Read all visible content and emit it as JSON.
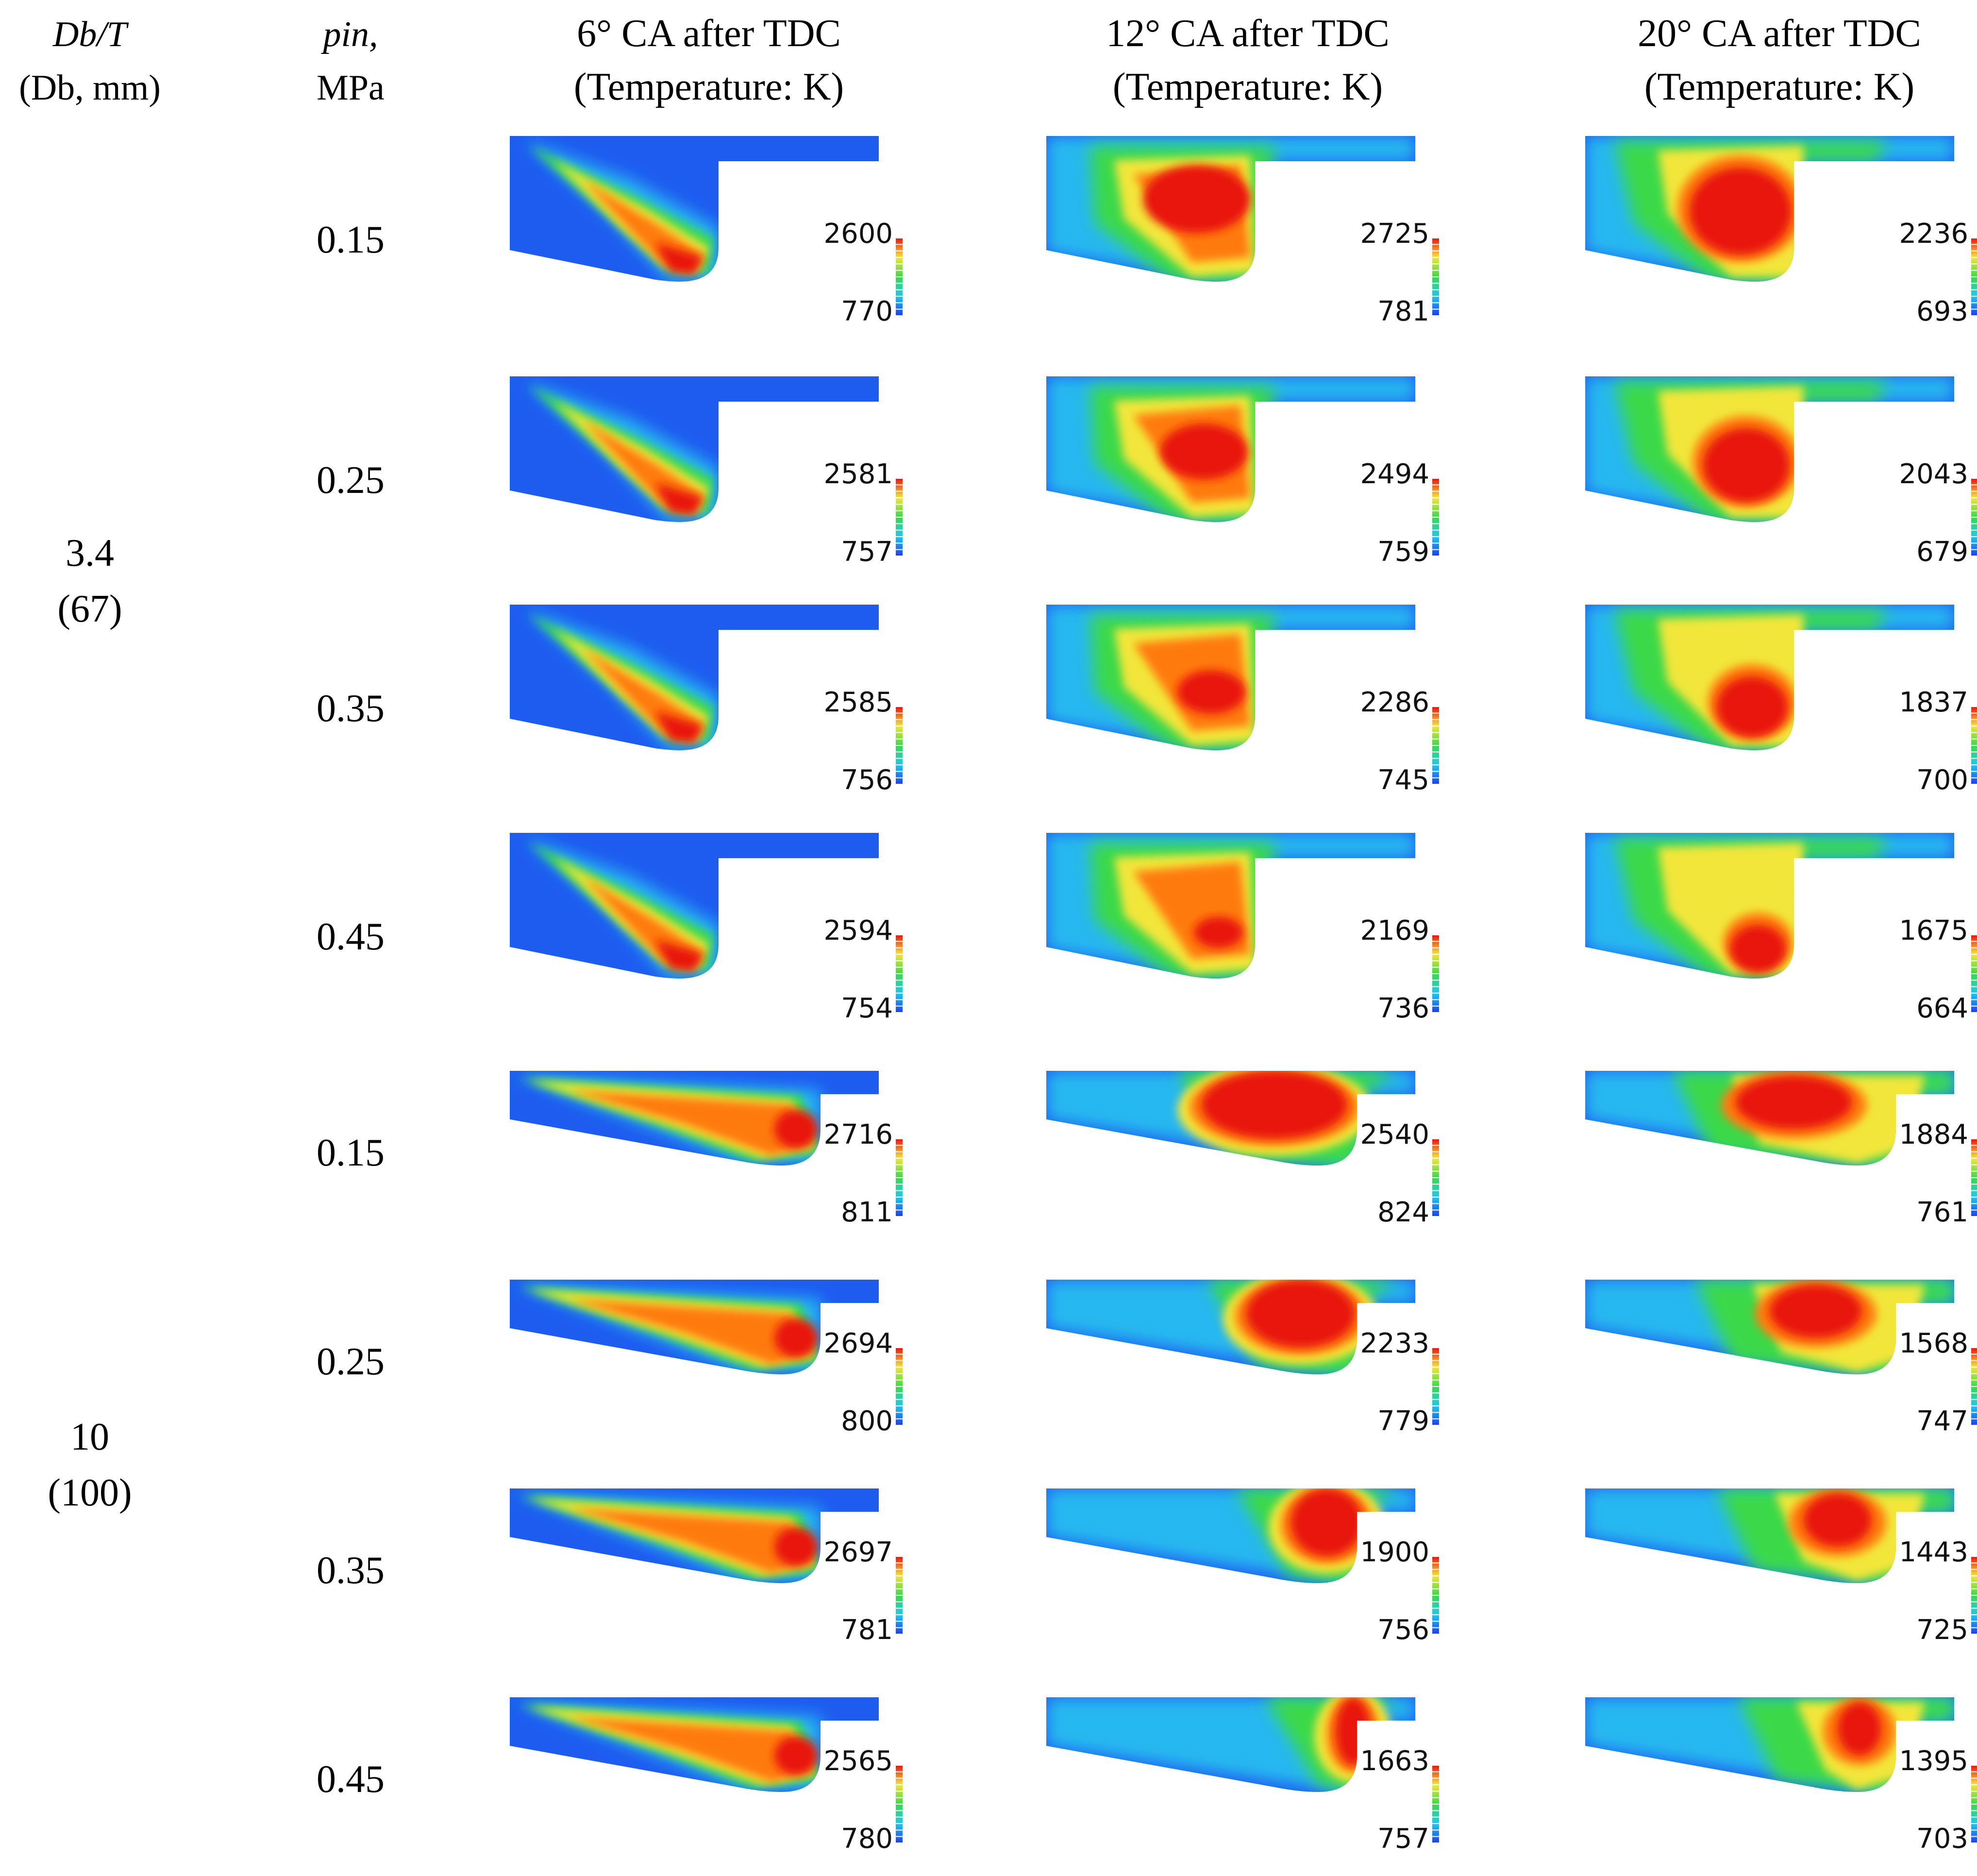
{
  "header": {
    "col_db": {
      "line1": "Db/T",
      "line2": "(Db, mm)"
    },
    "col_p": {
      "line1": "pin,",
      "line2": "MPa"
    },
    "col_6": {
      "line1": "6° CA after TDC",
      "line2": "(Temperature: K)"
    },
    "col_12": {
      "line1": "12° CA after TDC",
      "line2": "(Temperature: K)"
    },
    "col_20": {
      "line1": "20° CA after TDC",
      "line2": "(Temperature: K)"
    }
  },
  "groups": [
    {
      "ratio": "3.4",
      "diameter": "(67)"
    },
    {
      "ratio": "10",
      "diameter": "(100)"
    }
  ],
  "rows": [
    {
      "group": 0,
      "pressure": "0.15",
      "maps": [
        {
          "max": "2600",
          "min": "770"
        },
        {
          "max": "2725",
          "min": "781"
        },
        {
          "max": "2236",
          "min": "693"
        }
      ]
    },
    {
      "group": 0,
      "pressure": "0.25",
      "maps": [
        {
          "max": "2581",
          "min": "757"
        },
        {
          "max": "2494",
          "min": "759"
        },
        {
          "max": "2043",
          "min": "679"
        }
      ]
    },
    {
      "group": 0,
      "pressure": "0.35",
      "maps": [
        {
          "max": "2585",
          "min": "756"
        },
        {
          "max": "2286",
          "min": "745"
        },
        {
          "max": "1837",
          "min": "700"
        }
      ]
    },
    {
      "group": 0,
      "pressure": "0.45",
      "maps": [
        {
          "max": "2594",
          "min": "754"
        },
        {
          "max": "2169",
          "min": "736"
        },
        {
          "max": "1675",
          "min": "664"
        }
      ]
    },
    {
      "group": 1,
      "pressure": "0.15",
      "maps": [
        {
          "max": "2716",
          "min": "811"
        },
        {
          "max": "2540",
          "min": "824"
        },
        {
          "max": "1884",
          "min": "761"
        }
      ]
    },
    {
      "group": 1,
      "pressure": "0.25",
      "maps": [
        {
          "max": "2694",
          "min": "800"
        },
        {
          "max": "2233",
          "min": "779"
        },
        {
          "max": "1568",
          "min": "747"
        }
      ]
    },
    {
      "group": 1,
      "pressure": "0.35",
      "maps": [
        {
          "max": "2697",
          "min": "781"
        },
        {
          "max": "1900",
          "min": "756"
        },
        {
          "max": "1443",
          "min": "725"
        }
      ]
    },
    {
      "group": 1,
      "pressure": "0.45",
      "maps": [
        {
          "max": "2565",
          "min": "780"
        },
        {
          "max": "1663",
          "min": "757"
        },
        {
          "max": "1395",
          "min": "703"
        }
      ]
    }
  ],
  "colors": {
    "cold": "#1e5cf0",
    "cool": "#26b8f0",
    "mid": "#3bd94a",
    "warm": "#f2e63a",
    "hot": "#ff7a10",
    "peak": "#e8130f"
  }
}
